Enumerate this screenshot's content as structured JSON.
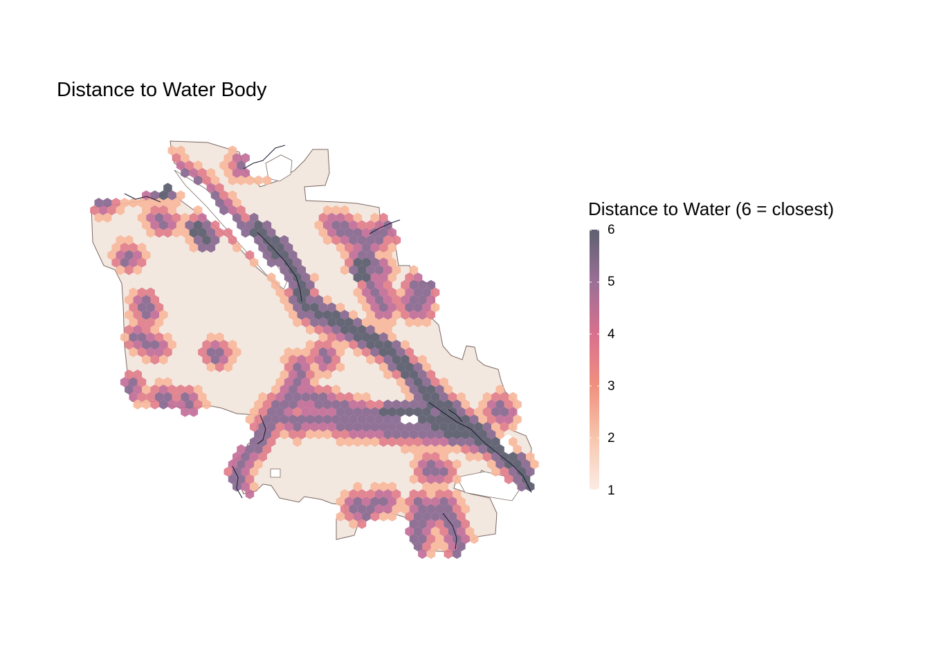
{
  "title": "Distance to Water Body",
  "legend": {
    "title": "Distance to Water (6 = closest)",
    "ticks": [
      "6",
      "5",
      "4",
      "3",
      "2",
      "1"
    ],
    "min": 1,
    "max": 6,
    "colors": [
      "#fbece5",
      "#f7b79a",
      "#e07b88",
      "#c16a97",
      "#8a6b92",
      "#5e6070"
    ]
  },
  "colors": {
    "land_fill": "#f3e8e0",
    "boundary": "#6e5a55",
    "water_line": "#1e1e34",
    "hex_outer": "#fbe4d8"
  }
}
